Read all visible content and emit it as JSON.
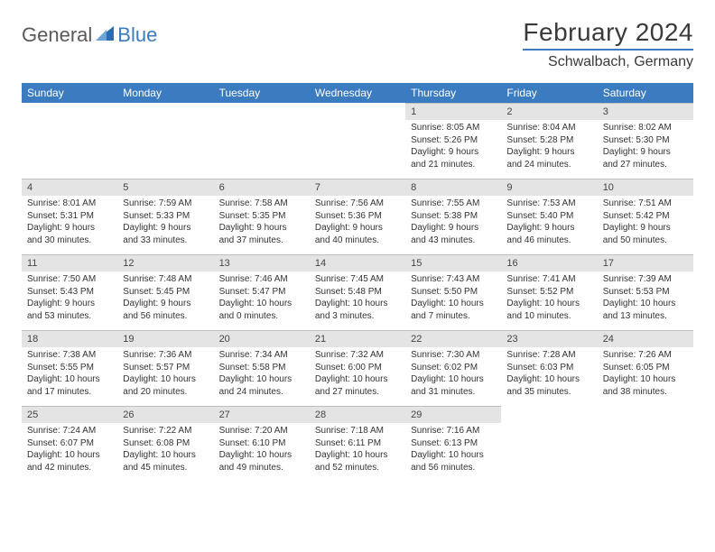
{
  "brand": {
    "part1": "General",
    "part2": "Blue"
  },
  "title": "February 2024",
  "location": "Schwalbach, Germany",
  "colors": {
    "header_bg": "#3b7bbf",
    "header_text": "#ffffff",
    "daynum_bg": "#e4e4e4",
    "rule": "#bfbfbf",
    "text": "#333333"
  },
  "daynames": [
    "Sunday",
    "Monday",
    "Tuesday",
    "Wednesday",
    "Thursday",
    "Friday",
    "Saturday"
  ],
  "weeks": [
    [
      {
        "empty": true
      },
      {
        "empty": true
      },
      {
        "empty": true
      },
      {
        "empty": true
      },
      {
        "num": "1",
        "sunrise": "8:05 AM",
        "sunset": "5:26 PM",
        "daylight": "9 hours and 21 minutes."
      },
      {
        "num": "2",
        "sunrise": "8:04 AM",
        "sunset": "5:28 PM",
        "daylight": "9 hours and 24 minutes."
      },
      {
        "num": "3",
        "sunrise": "8:02 AM",
        "sunset": "5:30 PM",
        "daylight": "9 hours and 27 minutes."
      }
    ],
    [
      {
        "num": "4",
        "sunrise": "8:01 AM",
        "sunset": "5:31 PM",
        "daylight": "9 hours and 30 minutes."
      },
      {
        "num": "5",
        "sunrise": "7:59 AM",
        "sunset": "5:33 PM",
        "daylight": "9 hours and 33 minutes."
      },
      {
        "num": "6",
        "sunrise": "7:58 AM",
        "sunset": "5:35 PM",
        "daylight": "9 hours and 37 minutes."
      },
      {
        "num": "7",
        "sunrise": "7:56 AM",
        "sunset": "5:36 PM",
        "daylight": "9 hours and 40 minutes."
      },
      {
        "num": "8",
        "sunrise": "7:55 AM",
        "sunset": "5:38 PM",
        "daylight": "9 hours and 43 minutes."
      },
      {
        "num": "9",
        "sunrise": "7:53 AM",
        "sunset": "5:40 PM",
        "daylight": "9 hours and 46 minutes."
      },
      {
        "num": "10",
        "sunrise": "7:51 AM",
        "sunset": "5:42 PM",
        "daylight": "9 hours and 50 minutes."
      }
    ],
    [
      {
        "num": "11",
        "sunrise": "7:50 AM",
        "sunset": "5:43 PM",
        "daylight": "9 hours and 53 minutes."
      },
      {
        "num": "12",
        "sunrise": "7:48 AM",
        "sunset": "5:45 PM",
        "daylight": "9 hours and 56 minutes."
      },
      {
        "num": "13",
        "sunrise": "7:46 AM",
        "sunset": "5:47 PM",
        "daylight": "10 hours and 0 minutes."
      },
      {
        "num": "14",
        "sunrise": "7:45 AM",
        "sunset": "5:48 PM",
        "daylight": "10 hours and 3 minutes."
      },
      {
        "num": "15",
        "sunrise": "7:43 AM",
        "sunset": "5:50 PM",
        "daylight": "10 hours and 7 minutes."
      },
      {
        "num": "16",
        "sunrise": "7:41 AM",
        "sunset": "5:52 PM",
        "daylight": "10 hours and 10 minutes."
      },
      {
        "num": "17",
        "sunrise": "7:39 AM",
        "sunset": "5:53 PM",
        "daylight": "10 hours and 13 minutes."
      }
    ],
    [
      {
        "num": "18",
        "sunrise": "7:38 AM",
        "sunset": "5:55 PM",
        "daylight": "10 hours and 17 minutes."
      },
      {
        "num": "19",
        "sunrise": "7:36 AM",
        "sunset": "5:57 PM",
        "daylight": "10 hours and 20 minutes."
      },
      {
        "num": "20",
        "sunrise": "7:34 AM",
        "sunset": "5:58 PM",
        "daylight": "10 hours and 24 minutes."
      },
      {
        "num": "21",
        "sunrise": "7:32 AM",
        "sunset": "6:00 PM",
        "daylight": "10 hours and 27 minutes."
      },
      {
        "num": "22",
        "sunrise": "7:30 AM",
        "sunset": "6:02 PM",
        "daylight": "10 hours and 31 minutes."
      },
      {
        "num": "23",
        "sunrise": "7:28 AM",
        "sunset": "6:03 PM",
        "daylight": "10 hours and 35 minutes."
      },
      {
        "num": "24",
        "sunrise": "7:26 AM",
        "sunset": "6:05 PM",
        "daylight": "10 hours and 38 minutes."
      }
    ],
    [
      {
        "num": "25",
        "sunrise": "7:24 AM",
        "sunset": "6:07 PM",
        "daylight": "10 hours and 42 minutes."
      },
      {
        "num": "26",
        "sunrise": "7:22 AM",
        "sunset": "6:08 PM",
        "daylight": "10 hours and 45 minutes."
      },
      {
        "num": "27",
        "sunrise": "7:20 AM",
        "sunset": "6:10 PM",
        "daylight": "10 hours and 49 minutes."
      },
      {
        "num": "28",
        "sunrise": "7:18 AM",
        "sunset": "6:11 PM",
        "daylight": "10 hours and 52 minutes."
      },
      {
        "num": "29",
        "sunrise": "7:16 AM",
        "sunset": "6:13 PM",
        "daylight": "10 hours and 56 minutes."
      },
      {
        "empty": true
      },
      {
        "empty": true
      }
    ]
  ]
}
